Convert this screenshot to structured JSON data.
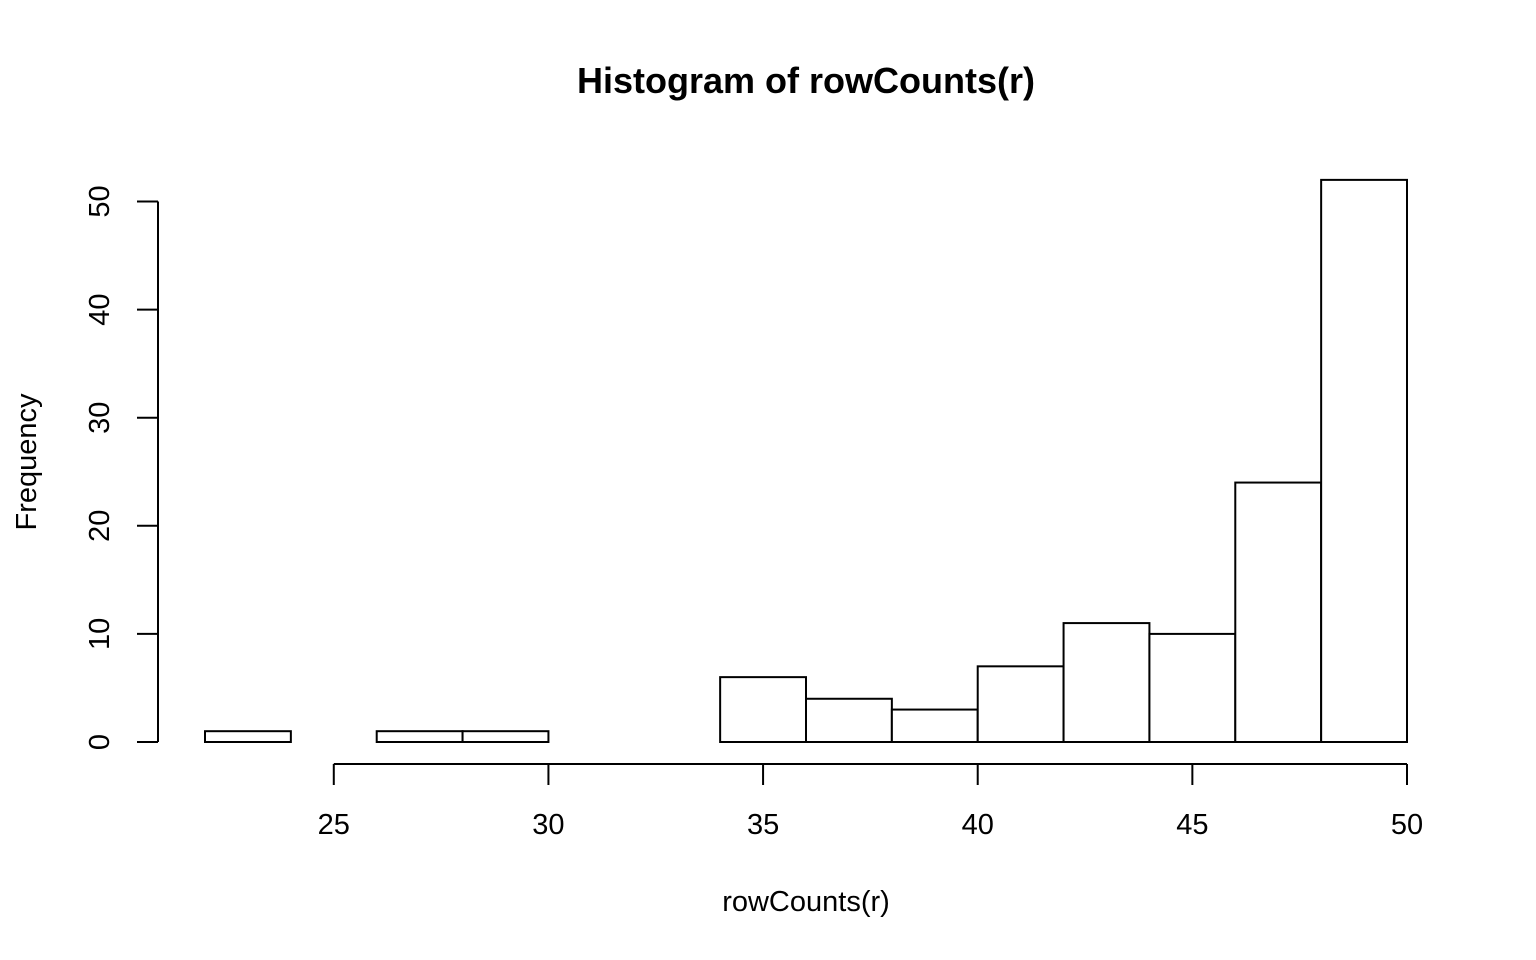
{
  "chart_data": {
    "type": "bar",
    "title": "Histogram of rowCounts(r)",
    "xlabel": "rowCounts(r)",
    "ylabel": "Frequency",
    "bins": [
      {
        "x0": 22,
        "x1": 24,
        "count": 1
      },
      {
        "x0": 24,
        "x1": 26,
        "count": 0
      },
      {
        "x0": 26,
        "x1": 28,
        "count": 1
      },
      {
        "x0": 28,
        "x1": 30,
        "count": 1
      },
      {
        "x0": 30,
        "x1": 32,
        "count": 0
      },
      {
        "x0": 32,
        "x1": 34,
        "count": 0
      },
      {
        "x0": 34,
        "x1": 36,
        "count": 6
      },
      {
        "x0": 36,
        "x1": 38,
        "count": 4
      },
      {
        "x0": 38,
        "x1": 40,
        "count": 3
      },
      {
        "x0": 40,
        "x1": 42,
        "count": 7
      },
      {
        "x0": 42,
        "x1": 44,
        "count": 11
      },
      {
        "x0": 44,
        "x1": 46,
        "count": 10
      },
      {
        "x0": 46,
        "x1": 48,
        "count": 24
      },
      {
        "x0": 48,
        "x1": 50,
        "count": 52
      }
    ],
    "xticks": [
      25,
      30,
      35,
      40,
      45,
      50
    ],
    "yticks": [
      0,
      10,
      20,
      30,
      40,
      50
    ],
    "xlim": [
      22,
      50
    ],
    "ylim": [
      0,
      52
    ],
    "grid": false,
    "bar_fill": "#ffffff",
    "bar_stroke": "#000000"
  }
}
